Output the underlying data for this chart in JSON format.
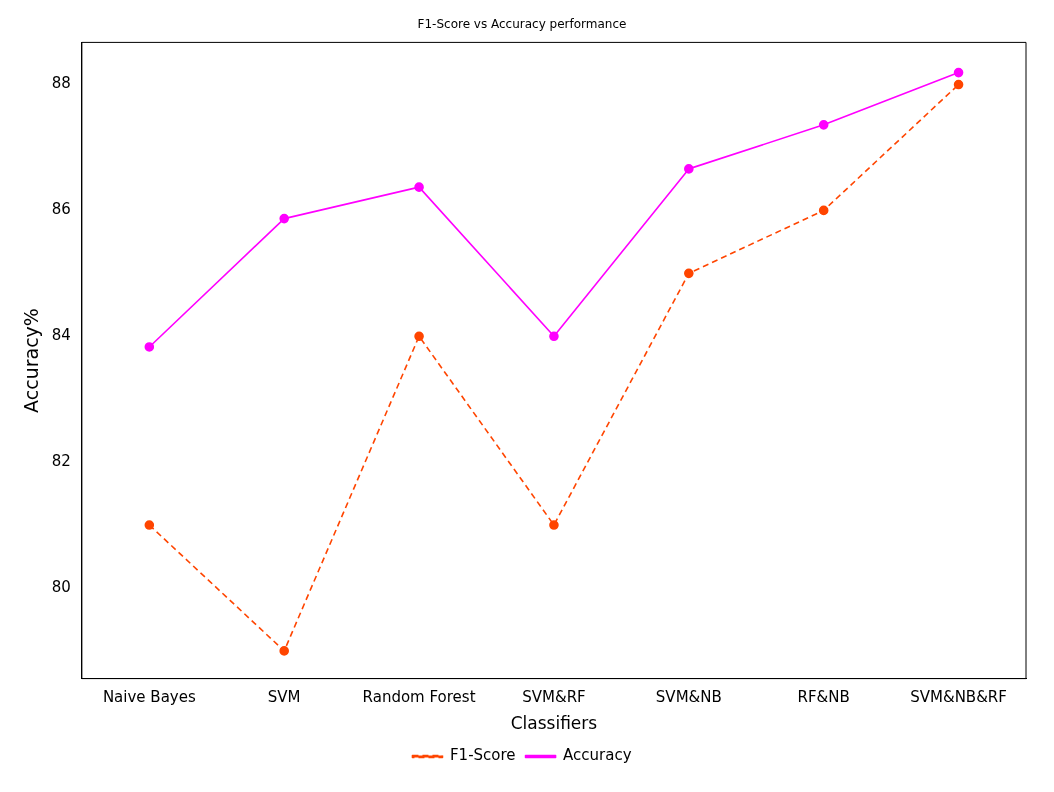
{
  "chart_data": {
    "type": "line",
    "title": "F1-Score vs Accuracy performance",
    "xlabel": "Classifiers",
    "ylabel": "Accuracy%",
    "categories": [
      "Naive Bayes",
      "SVM",
      "Random Forest",
      "SVM&RF",
      "SVM&NB",
      "RF&NB",
      "SVM&NB&RF"
    ],
    "series": [
      {
        "name": "F1-Score",
        "color": "#ff4500",
        "line_style": "dashed",
        "values": [
          81,
          79,
          84,
          81,
          85,
          86,
          88
        ]
      },
      {
        "name": "Accuracy",
        "color": "#ff00ff",
        "line_style": "solid",
        "values": [
          83.83,
          85.87,
          86.37,
          84,
          86.66,
          87.36,
          88.19
        ]
      }
    ],
    "ylim": [
      78.56,
      88.67
    ],
    "yticks": [
      80,
      82,
      84,
      86,
      88
    ],
    "grid": false,
    "legend": "bottom",
    "marker": "circle"
  }
}
